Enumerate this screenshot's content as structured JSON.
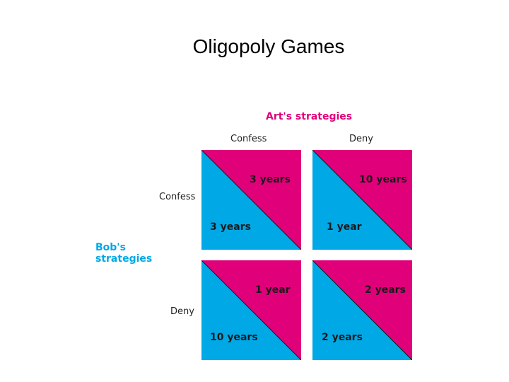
{
  "title": "Oligopoly Games",
  "art_heading": "Art's strategies",
  "bob_heading_line1": "Bob's",
  "bob_heading_line2": "strategies",
  "columns": [
    "Confess",
    "Deny"
  ],
  "rows": [
    "Confess",
    "Deny"
  ],
  "colors": {
    "art": "#e0007a",
    "bob": "#00a8e6"
  },
  "cells": [
    {
      "art": "3 years",
      "bob": "3 years"
    },
    {
      "art": "10 years",
      "bob": "1 year"
    },
    {
      "art": "1 year",
      "bob": "10 years"
    },
    {
      "art": "2 years",
      "bob": "2 years"
    }
  ]
}
